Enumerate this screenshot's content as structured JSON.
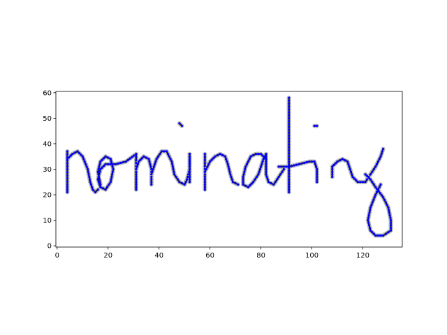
{
  "chart_data": {
    "type": "scatter",
    "title": "",
    "xlabel": "",
    "ylabel": "",
    "xlim": [
      -0.5,
      135.5
    ],
    "ylim": [
      -0.5,
      60.5
    ],
    "xticks": [
      0,
      20,
      40,
      60,
      80,
      100,
      120
    ],
    "yticks": [
      0,
      10,
      20,
      30,
      40,
      50,
      60
    ],
    "grid": false,
    "legend": "none",
    "colors": {
      "points": "#0000ff",
      "ink": "#1a1a1a",
      "axes": "#000000"
    },
    "strokes": [
      [
        [
          4,
          37
        ],
        [
          4,
          30
        ],
        [
          4,
          24
        ],
        [
          4,
          21
        ]
      ],
      [
        [
          4,
          34
        ],
        [
          6,
          36
        ],
        [
          8,
          37
        ],
        [
          10,
          35
        ],
        [
          12,
          30
        ],
        [
          13,
          25
        ],
        [
          14,
          22
        ],
        [
          15,
          21
        ],
        [
          16,
          22
        ]
      ],
      [
        [
          17,
          24
        ],
        [
          16,
          29
        ],
        [
          17,
          33
        ],
        [
          19,
          35
        ],
        [
          21,
          34
        ],
        [
          22,
          30
        ],
        [
          21,
          25
        ],
        [
          19,
          22
        ],
        [
          17,
          23
        ],
        [
          16,
          26
        ],
        [
          17,
          30
        ],
        [
          19,
          32
        ],
        [
          23,
          32
        ],
        [
          27,
          33
        ],
        [
          31,
          36
        ]
      ],
      [
        [
          31,
          36
        ],
        [
          31,
          30
        ],
        [
          31,
          25
        ],
        [
          31,
          22
        ]
      ],
      [
        [
          31,
          30
        ],
        [
          32,
          33
        ],
        [
          34,
          35
        ],
        [
          36,
          34
        ],
        [
          37,
          30
        ],
        [
          37,
          26
        ],
        [
          37,
          24
        ]
      ],
      [
        [
          37,
          28
        ],
        [
          39,
          34
        ],
        [
          41,
          37
        ],
        [
          43,
          37
        ],
        [
          45,
          33
        ],
        [
          46,
          28
        ],
        [
          48,
          25
        ],
        [
          50,
          24
        ],
        [
          51,
          26
        ],
        [
          52,
          30
        ],
        [
          52,
          34
        ],
        [
          52,
          36
        ]
      ],
      [
        [
          52,
          36
        ],
        [
          52,
          30
        ],
        [
          52,
          25
        ]
      ],
      [
        [
          48,
          48
        ],
        [
          49,
          47
        ]
      ],
      [
        [
          58,
          36
        ],
        [
          58,
          30
        ],
        [
          58,
          25
        ],
        [
          58,
          22
        ]
      ],
      [
        [
          58,
          29
        ],
        [
          60,
          33
        ],
        [
          62,
          35
        ],
        [
          64,
          36
        ],
        [
          66,
          35
        ],
        [
          67,
          32
        ],
        [
          68,
          28
        ],
        [
          69,
          25
        ],
        [
          71,
          24
        ]
      ],
      [
        [
          82,
          34
        ],
        [
          80,
          36
        ],
        [
          78,
          36
        ],
        [
          76,
          35
        ],
        [
          74,
          31
        ],
        [
          73,
          27
        ],
        [
          73,
          24
        ],
        [
          75,
          23
        ],
        [
          77,
          25
        ],
        [
          79,
          28
        ],
        [
          80,
          31
        ],
        [
          81,
          34
        ],
        [
          82,
          36
        ],
        [
          82,
          32
        ],
        [
          82,
          28
        ],
        [
          83,
          25
        ],
        [
          85,
          24
        ],
        [
          87,
          27
        ],
        [
          89,
          30
        ]
      ],
      [
        [
          91,
          58
        ],
        [
          91,
          50
        ],
        [
          91,
          42
        ],
        [
          91,
          34
        ],
        [
          91,
          26
        ],
        [
          91,
          21
        ]
      ],
      [
        [
          87,
          31
        ],
        [
          91,
          31
        ],
        [
          95,
          32
        ],
        [
          99,
          33
        ],
        [
          101,
          33
        ],
        [
          102,
          30
        ],
        [
          102,
          27
        ],
        [
          102,
          25
        ]
      ],
      [
        [
          101,
          47
        ],
        [
          102,
          47
        ]
      ],
      [
        [
          108,
          27
        ],
        [
          108,
          31
        ],
        [
          110,
          33
        ],
        [
          112,
          34
        ],
        [
          114,
          33
        ],
        [
          115,
          30
        ],
        [
          116,
          27
        ],
        [
          118,
          25
        ],
        [
          121,
          25
        ],
        [
          123,
          28
        ],
        [
          125,
          31
        ],
        [
          127,
          35
        ],
        [
          128,
          38
        ]
      ],
      [
        [
          121,
          28
        ],
        [
          123,
          26
        ],
        [
          125,
          23
        ],
        [
          128,
          19
        ],
        [
          130,
          15
        ],
        [
          131,
          10
        ],
        [
          131,
          6
        ],
        [
          128,
          4
        ],
        [
          125,
          4
        ],
        [
          123,
          6
        ],
        [
          122,
          10
        ],
        [
          123,
          15
        ],
        [
          125,
          20
        ],
        [
          127,
          24
        ]
      ]
    ]
  }
}
